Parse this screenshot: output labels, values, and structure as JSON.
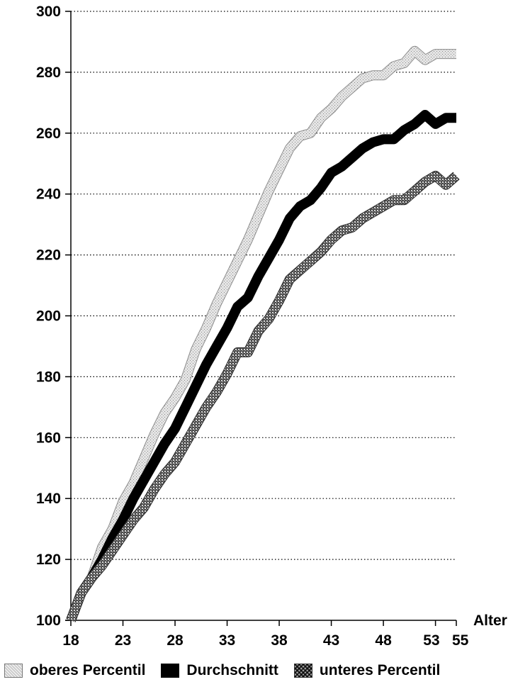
{
  "chart_data": {
    "type": "line",
    "title": "",
    "xlabel": "Alter",
    "ylabel": "",
    "xlim": [
      18,
      55
    ],
    "ylim": [
      100,
      300
    ],
    "x_ticks": [
      18,
      23,
      28,
      33,
      38,
      43,
      48,
      53,
      55
    ],
    "y_ticks": [
      100,
      120,
      140,
      160,
      180,
      200,
      220,
      240,
      260,
      280,
      300
    ],
    "grid": "horizontal dotted",
    "legend_position": "bottom",
    "x": [
      18,
      19,
      20,
      21,
      22,
      23,
      24,
      25,
      26,
      27,
      28,
      29,
      30,
      31,
      32,
      33,
      34,
      35,
      36,
      37,
      38,
      39,
      40,
      41,
      42,
      43,
      44,
      45,
      46,
      47,
      48,
      49,
      50,
      51,
      52,
      53,
      54,
      55
    ],
    "series": [
      {
        "name": "oberes Percentil",
        "pattern": "light-dotted",
        "values": [
          100,
          109,
          114,
          124,
          130,
          139,
          145,
          153,
          161,
          168,
          173,
          179,
          189,
          196,
          204,
          211,
          218,
          225,
          233,
          241,
          248,
          255,
          259,
          260,
          265,
          268,
          272,
          275,
          278,
          279,
          279,
          282,
          283,
          287,
          284,
          286,
          286,
          286
        ]
      },
      {
        "name": "Durchschnitt",
        "pattern": "solid-black",
        "values": [
          100,
          109,
          114,
          120,
          127,
          133,
          140,
          146,
          152,
          158,
          163,
          170,
          177,
          184,
          190,
          196,
          203,
          206,
          213,
          219,
          225,
          232,
          236,
          238,
          242,
          247,
          249,
          252,
          255,
          257,
          258,
          258,
          261,
          263,
          266,
          263,
          265,
          265
        ]
      },
      {
        "name": "unteres Percentil",
        "pattern": "crosshatch",
        "values": [
          100,
          109,
          114,
          118,
          123,
          128,
          133,
          137,
          143,
          148,
          152,
          158,
          164,
          170,
          175,
          181,
          188,
          188,
          195,
          199,
          205,
          212,
          215,
          218,
          221,
          225,
          228,
          229,
          232,
          234,
          236,
          238,
          238,
          241,
          244,
          246,
          243,
          246
        ]
      }
    ],
    "colors": {
      "oberes": "#d2d2d2",
      "durchschnitt": "#000000",
      "unteres": "#8a8a8a"
    }
  }
}
